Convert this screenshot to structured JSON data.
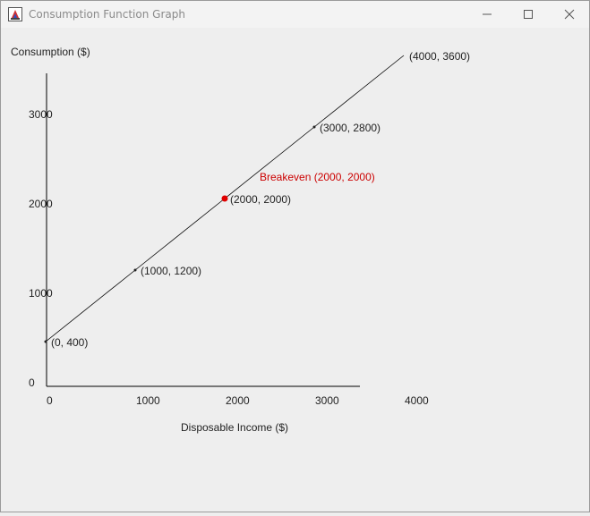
{
  "window": {
    "title": "Consumption Function Graph",
    "buttons": {
      "minimize": "minimize-icon",
      "maximize": "maximize-icon",
      "close": "close-icon"
    }
  },
  "chart_data": {
    "type": "line",
    "title": "",
    "xlabel": "Disposable Income ($)",
    "ylabel": "Consumption ($)",
    "x_ticks": [
      "0",
      "1000",
      "2000",
      "3000",
      "4000"
    ],
    "y_ticks": [
      "0",
      "1000",
      "2000",
      "3000"
    ],
    "series": [
      {
        "values": [
          {
            "x": 0,
            "y": 400,
            "label": "(0, 400)"
          },
          {
            "x": 1000,
            "y": 1200,
            "label": "(1000, 1200)"
          },
          {
            "x": 2000,
            "y": 2000,
            "label": "(2000, 2000)"
          },
          {
            "x": 3000,
            "y": 2800,
            "label": "(3000, 2800)"
          },
          {
            "x": 4000,
            "y": 3600,
            "label": "(4000, 3600)"
          }
        ]
      }
    ],
    "annotations": [
      {
        "x": 2000,
        "y": 2000,
        "text": "Breakeven (2000, 2000)",
        "color": "#cc0000"
      }
    ],
    "colors": {
      "line": "#000000",
      "breakeven": "#e00000"
    }
  }
}
